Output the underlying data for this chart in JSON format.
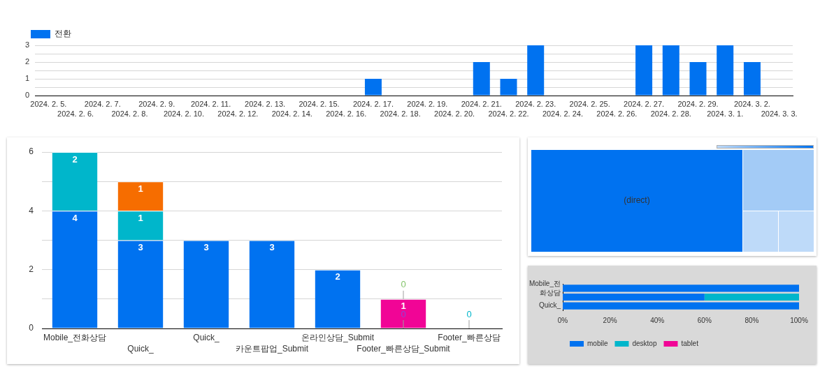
{
  "chart_data": [
    {
      "type": "bar",
      "legend": "top left",
      "categories": [
        "2024. 2. 5.",
        "2024. 2. 6.",
        "2024. 2. 7.",
        "2024. 2. 8.",
        "2024. 2. 9.",
        "2024. 2. 10.",
        "2024. 2. 11.",
        "2024. 2. 12.",
        "2024. 2. 13.",
        "2024. 2. 14.",
        "2024. 2. 15.",
        "2024. 2. 16.",
        "2024. 2. 17.",
        "2024. 2. 18.",
        "2024. 2. 19.",
        "2024. 2. 20.",
        "2024. 2. 21.",
        "2024. 2. 22.",
        "2024. 2. 23.",
        "2024. 2. 24.",
        "2024. 2. 25.",
        "2024. 2. 26.",
        "2024. 2. 27.",
        "2024. 2. 28.",
        "2024. 2. 29.",
        "2024. 3. 1.",
        "2024. 3. 2.",
        "2024. 3. 3."
      ],
      "series": [
        {
          "name": "전환",
          "color": "#0072f0",
          "values": [
            0,
            0,
            0,
            0,
            0,
            0,
            0,
            0,
            0,
            0,
            0,
            0,
            1,
            0,
            0,
            0,
            2,
            1,
            3,
            0,
            0,
            0,
            3,
            3,
            2,
            3,
            2,
            0
          ]
        }
      ],
      "ylim": [
        0,
        3
      ],
      "yticks": [
        0,
        {
          "value": 0.5,
          "label": null
        },
        1,
        {
          "value": 1.5,
          "label": null
        },
        2,
        {
          "value": 2.5,
          "label": null
        },
        3
      ],
      "grid": "y"
    },
    {
      "type": "bar",
      "stacked": true,
      "categories": [
        "Mobile_전화상담",
        "Quick_",
        "Quick_",
        "카운트팝업_Submit",
        "온라인상담_Submit",
        "Footer_빠른상담_Submit",
        "Footer_빠른상담"
      ],
      "series": [
        {
          "color": "#0072f0",
          "values": [
            4,
            3,
            3,
            3,
            2,
            null,
            null
          ],
          "value_labels": [
            "4",
            "3",
            "3",
            "3",
            "2",
            null,
            null
          ]
        },
        {
          "color": "#00b6cb",
          "values": [
            2,
            1,
            null,
            null,
            null,
            null,
            0
          ],
          "value_labels": [
            "2",
            "1",
            null,
            null,
            null,
            null,
            "0"
          ]
        },
        {
          "color": "#f66d00",
          "values": [
            null,
            1,
            null,
            null,
            null,
            null,
            null
          ],
          "value_labels": [
            null,
            "1",
            null,
            null,
            null,
            null,
            null
          ]
        },
        {
          "color": "#8e44d8",
          "values": [
            null,
            null,
            null,
            null,
            null,
            0,
            null
          ],
          "value_labels": [
            null,
            null,
            null,
            null,
            null,
            "0",
            null
          ]
        },
        {
          "color": "#f10596",
          "values": [
            null,
            null,
            null,
            null,
            null,
            1,
            null
          ],
          "value_labels": [
            null,
            null,
            null,
            null,
            null,
            "1",
            null
          ]
        },
        {
          "color": "#84c46b",
          "values": [
            null,
            null,
            null,
            null,
            null,
            0,
            null
          ],
          "value_labels": [
            null,
            null,
            null,
            null,
            null,
            "0",
            null
          ]
        }
      ],
      "ylim": [
        0,
        6
      ],
      "yticks": [
        0,
        {
          "value": 1,
          "label": null
        },
        2,
        {
          "value": 3,
          "label": null
        },
        4,
        {
          "value": 5,
          "label": null
        },
        6
      ],
      "grid": "y"
    },
    {
      "type": "other",
      "categories": [
        "(direct)",
        null,
        null,
        null
      ],
      "colors": [
        "#0072f0",
        "#a3cbf6",
        "#bedaf9",
        "#bedaf9"
      ]
    },
    {
      "type": "bar",
      "orientation": "horizontal",
      "stacked": true,
      "legend": "bottom left",
      "categories": [
        "Mobile_전화상담",
        null,
        "Quick_"
      ],
      "series": [
        {
          "name": "mobile",
          "color": "#0072f0",
          "values": [
            100,
            60,
            100
          ]
        },
        {
          "name": "desktop",
          "color": "#00b6cb",
          "values": [
            null,
            40,
            null
          ]
        },
        {
          "name": "tablet",
          "color": "#f10596",
          "values": [
            null,
            null,
            null
          ]
        }
      ],
      "xlim": [
        0,
        100
      ],
      "xticks": [
        {
          "value": 0,
          "label": "0%"
        },
        {
          "value": 20,
          "label": "20%"
        },
        {
          "value": 40,
          "label": "40%"
        },
        {
          "value": 60,
          "label": "60%"
        },
        {
          "value": 80,
          "label": "80%"
        },
        {
          "value": 100,
          "label": "100%"
        }
      ]
    }
  ]
}
